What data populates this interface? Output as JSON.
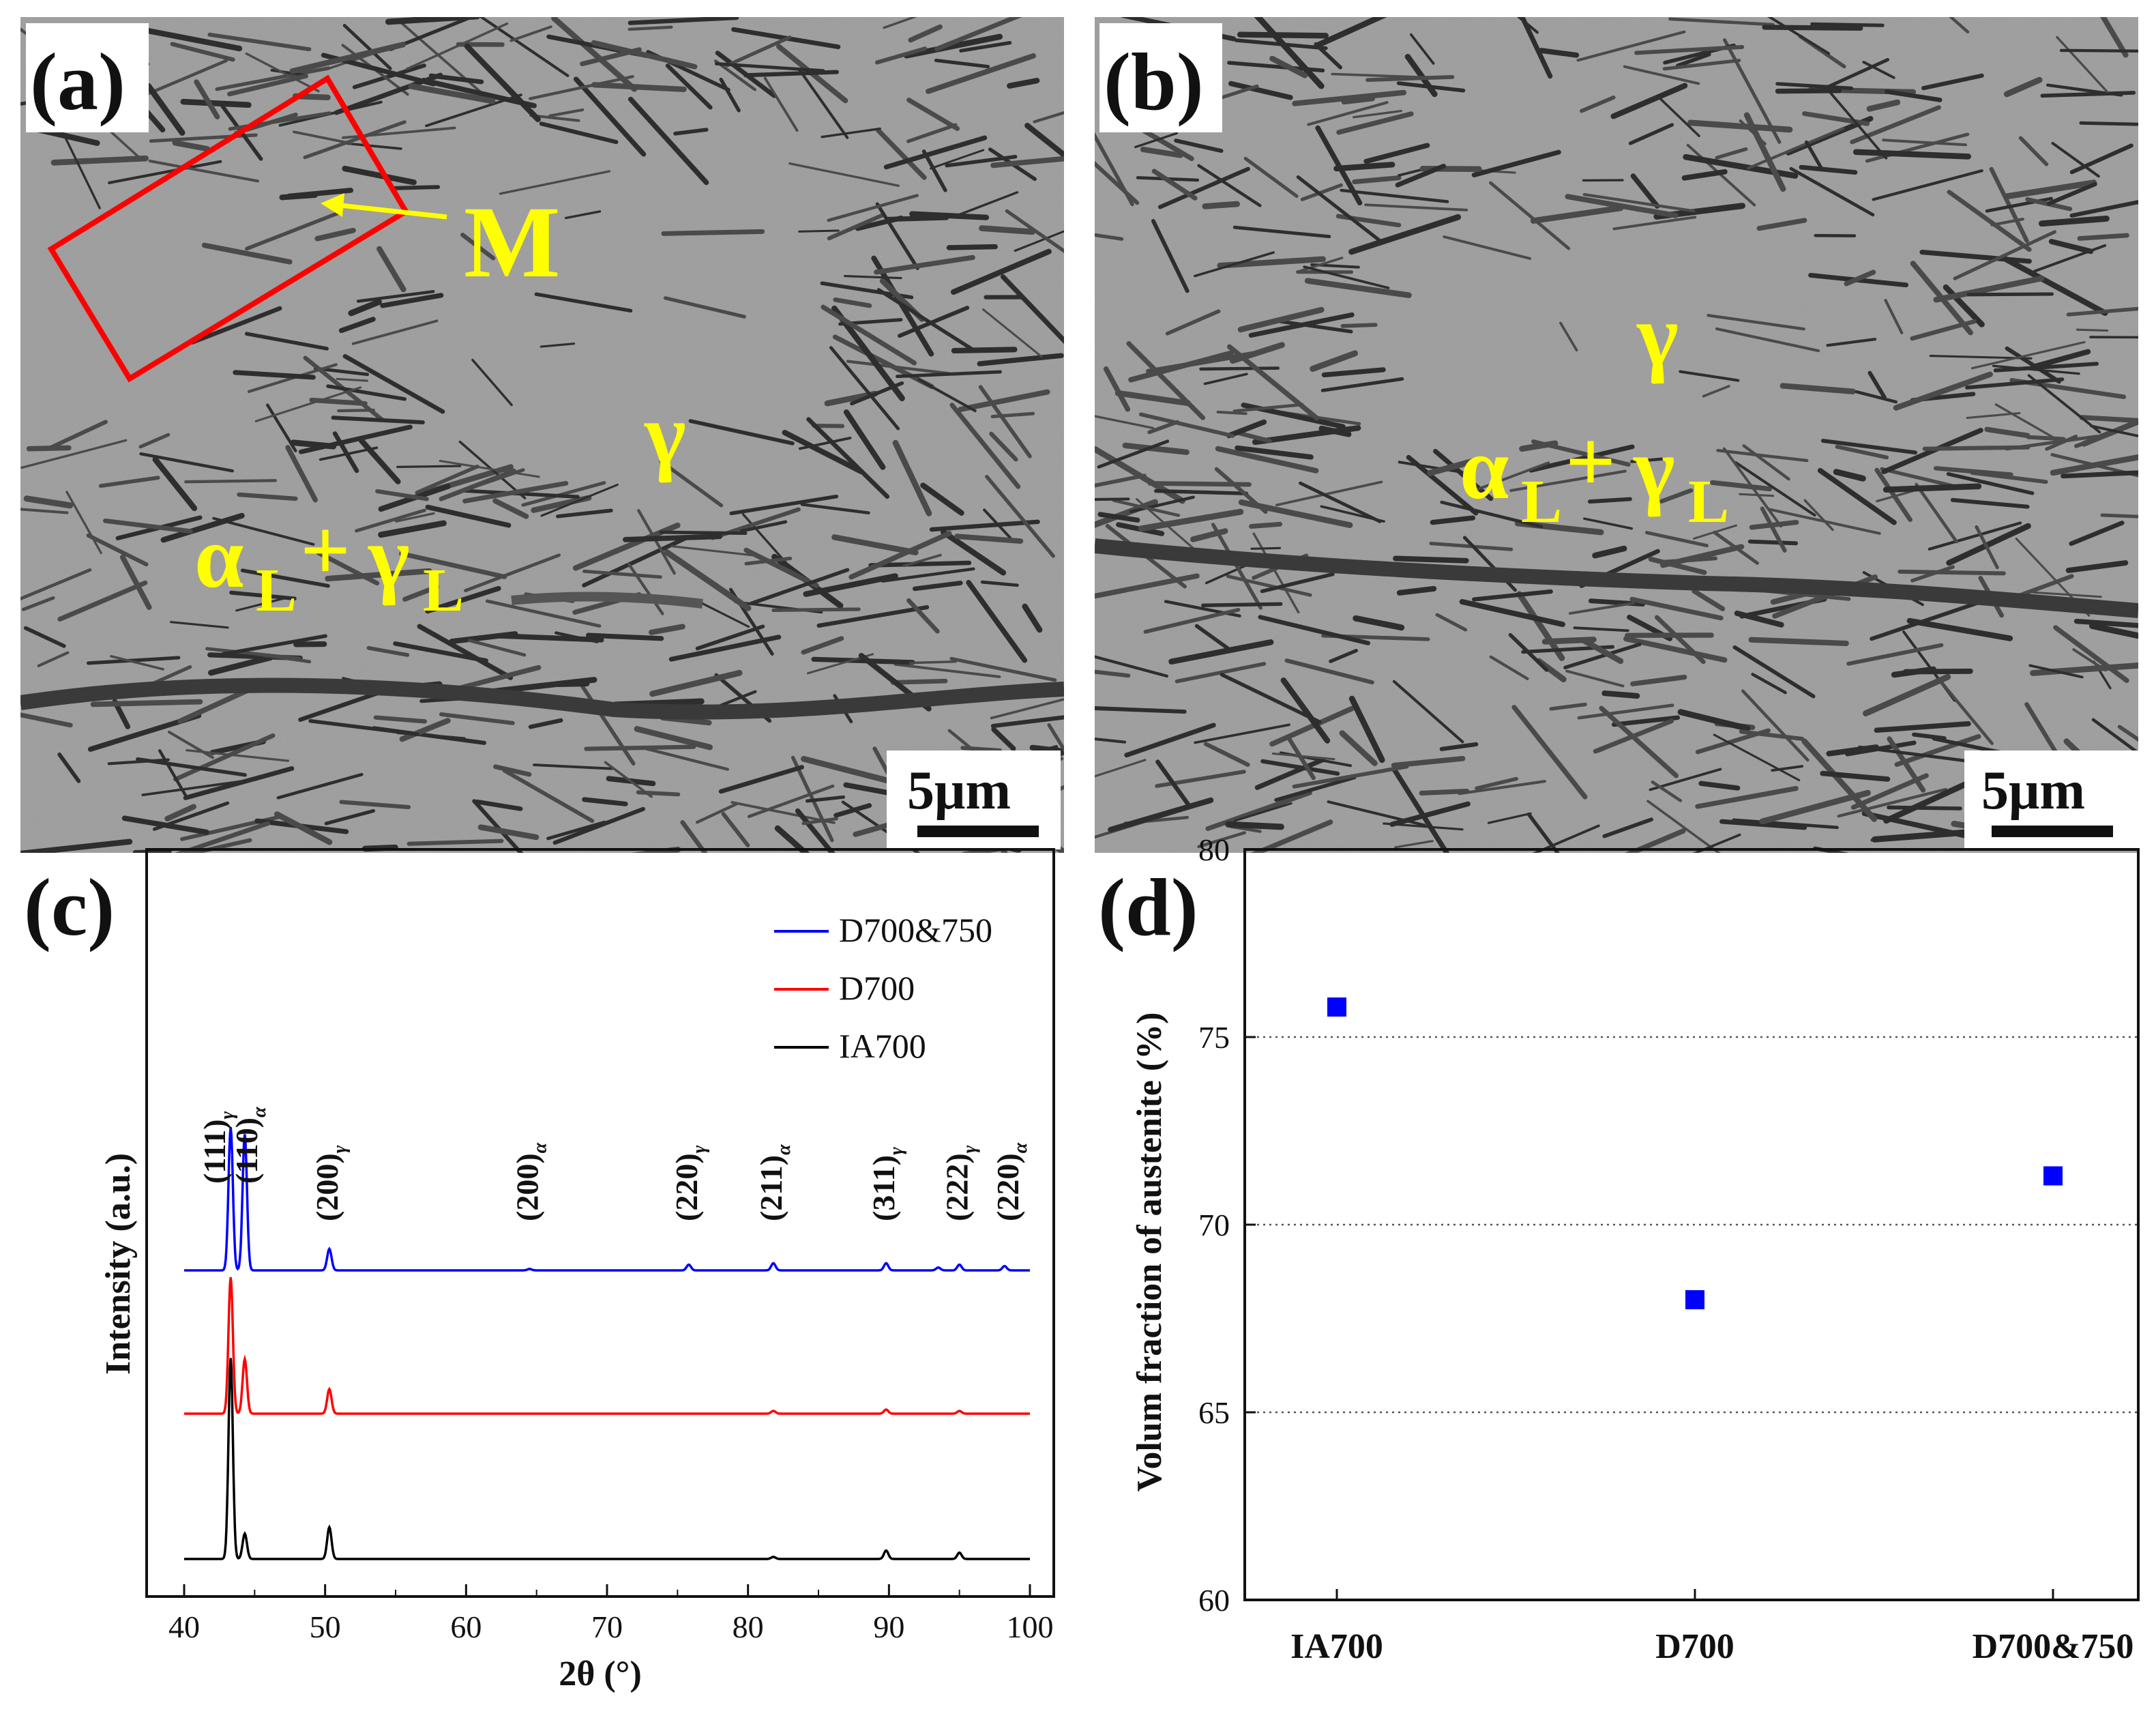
{
  "panels": {
    "a": {
      "label": "(a)",
      "annotations": {
        "martensite": "M",
        "gamma": "γ",
        "alpha_l": "α",
        "sub_l1": "L",
        "plus": "+",
        "gamma_l": "γ",
        "sub_l2": "L"
      },
      "scale_bar": "5μm"
    },
    "b": {
      "label": "(b)",
      "annotations": {
        "gamma": "γ",
        "alpha_l": "α",
        "sub_l1": "L",
        "plus": "+",
        "gamma_l": "γ",
        "sub_l2": "L"
      },
      "scale_bar": "5μm"
    },
    "c": {
      "label": "(c)"
    },
    "d": {
      "label": "(d)"
    }
  },
  "colors": {
    "blue": "#0000ff",
    "red": "#ff0000",
    "black": "#000000",
    "annotation": "#ffff00",
    "box": "#ff0000",
    "sem_bg": "#9c9c9c"
  },
  "chart_data": [
    {
      "id": "c",
      "type": "line",
      "xlabel": "2θ (°)",
      "ylabel": "Intensity (a.u.)",
      "xlim": [
        40,
        100
      ],
      "xticks": [
        40,
        50,
        60,
        70,
        80,
        90,
        100
      ],
      "legend": [
        "D700&750",
        "D700",
        "IA700"
      ],
      "legend_position": "top-right",
      "series": [
        {
          "name": "D700&750",
          "color": "#0000ff",
          "offset": 2,
          "peaks": [
            [
              43.3,
              1.0
            ],
            [
              44.3,
              0.95
            ],
            [
              50.3,
              0.15
            ],
            [
              64.5,
              0.01
            ],
            [
              75.8,
              0.04
            ],
            [
              81.8,
              0.05
            ],
            [
              89.8,
              0.05
            ],
            [
              93.5,
              0.02
            ],
            [
              95.0,
              0.04
            ],
            [
              98.2,
              0.03
            ]
          ]
        },
        {
          "name": "D700",
          "color": "#ff0000",
          "offset": 1,
          "peaks": [
            [
              43.3,
              1.0
            ],
            [
              44.3,
              0.4
            ],
            [
              50.3,
              0.18
            ],
            [
              81.8,
              0.02
            ],
            [
              89.8,
              0.03
            ],
            [
              95.0,
              0.02
            ]
          ]
        },
        {
          "name": "IA700",
          "color": "#000000",
          "offset": 0,
          "peaks": [
            [
              43.3,
              0.95
            ],
            [
              44.3,
              0.12
            ],
            [
              50.3,
              0.15
            ],
            [
              81.8,
              0.01
            ],
            [
              89.8,
              0.04
            ],
            [
              95.0,
              0.03
            ]
          ]
        }
      ],
      "peak_labels": [
        {
          "x": 43.3,
          "main": "(111)",
          "sub": "γ"
        },
        {
          "x": 44.3,
          "main": "(110)",
          "sub": "α"
        },
        {
          "x": 50.3,
          "main": "(200)",
          "sub": "γ"
        },
        {
          "x": 64.5,
          "main": "(200)",
          "sub": "α"
        },
        {
          "x": 75.8,
          "main": "(220)",
          "sub": "γ"
        },
        {
          "x": 81.8,
          "main": "(211)",
          "sub": "α"
        },
        {
          "x": 89.8,
          "main": "(311)",
          "sub": "γ"
        },
        {
          "x": 95.0,
          "main": "(222)",
          "sub": "γ"
        },
        {
          "x": 98.6,
          "main": "(220)",
          "sub": "α"
        }
      ]
    },
    {
      "id": "d",
      "type": "scatter",
      "ylabel": "Volum fraction of austenite (%)",
      "categories": [
        "IA700",
        "D700",
        "D700&750"
      ],
      "values": [
        75.8,
        68.0,
        71.3
      ],
      "ylim": [
        60,
        80
      ],
      "yticks": [
        60,
        65,
        70,
        75,
        80
      ],
      "grid": "dotted horizontal",
      "marker_color": "#0000ff"
    }
  ]
}
